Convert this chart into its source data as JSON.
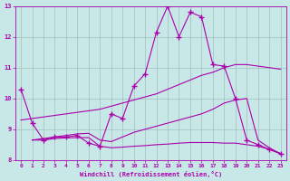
{
  "background_color": "#c8e8e8",
  "grid_color": "#a0c0c0",
  "line_color": "#aa00aa",
  "xlabel": "Windchill (Refroidissement éolien,°C)",
  "xlim": [
    -0.5,
    23.5
  ],
  "ylim": [
    8,
    13
  ],
  "yticks": [
    8,
    9,
    10,
    11,
    12,
    13
  ],
  "xticks": [
    0,
    1,
    2,
    3,
    4,
    5,
    6,
    7,
    8,
    9,
    10,
    11,
    12,
    13,
    14,
    15,
    16,
    17,
    18,
    19,
    20,
    21,
    22,
    23
  ],
  "line1_x": [
    0,
    1,
    2,
    3,
    4,
    5,
    6,
    7,
    8,
    9,
    10,
    11,
    12,
    13,
    14,
    15,
    16,
    17,
    18,
    19,
    20,
    21,
    22,
    23
  ],
  "line1_y": [
    10.3,
    9.2,
    8.65,
    8.75,
    8.75,
    8.8,
    8.55,
    8.45,
    9.5,
    9.35,
    10.4,
    10.8,
    12.15,
    13.0,
    12.0,
    12.8,
    12.65,
    11.1,
    11.05,
    10.0,
    8.65,
    8.5,
    8.35,
    8.2
  ],
  "line2_x": [
    0,
    1,
    2,
    3,
    4,
    5,
    6,
    7,
    8,
    9,
    10,
    11,
    12,
    13,
    14,
    15,
    16,
    17,
    18,
    19,
    20,
    21,
    22,
    23
  ],
  "line2_y": [
    9.3,
    9.35,
    9.4,
    9.45,
    9.5,
    9.55,
    9.6,
    9.65,
    9.75,
    9.85,
    9.95,
    10.05,
    10.15,
    10.3,
    10.45,
    10.6,
    10.75,
    10.85,
    11.0,
    11.1,
    11.1,
    11.05,
    11.0,
    10.95
  ],
  "line3_x": [
    1,
    2,
    3,
    4,
    5,
    6,
    7,
    8,
    9,
    10,
    11,
    12,
    13,
    14,
    15,
    16,
    17,
    18,
    19,
    20,
    21,
    22,
    23
  ],
  "line3_y": [
    8.65,
    8.65,
    8.7,
    8.72,
    8.73,
    8.73,
    8.45,
    8.4,
    8.42,
    8.45,
    8.47,
    8.5,
    8.52,
    8.55,
    8.57,
    8.57,
    8.57,
    8.55,
    8.55,
    8.5,
    8.45,
    8.35,
    8.22
  ],
  "line4_x": [
    1,
    2,
    3,
    4,
    5,
    6,
    7,
    8,
    9,
    10,
    11,
    12,
    13,
    14,
    15,
    16,
    17,
    18,
    19,
    20,
    21,
    22,
    23
  ],
  "line4_y": [
    8.65,
    8.7,
    8.75,
    8.8,
    8.85,
    8.87,
    8.65,
    8.6,
    8.75,
    8.9,
    9.0,
    9.1,
    9.2,
    9.3,
    9.4,
    9.5,
    9.65,
    9.85,
    9.95,
    10.0,
    8.65,
    8.4,
    8.2
  ]
}
